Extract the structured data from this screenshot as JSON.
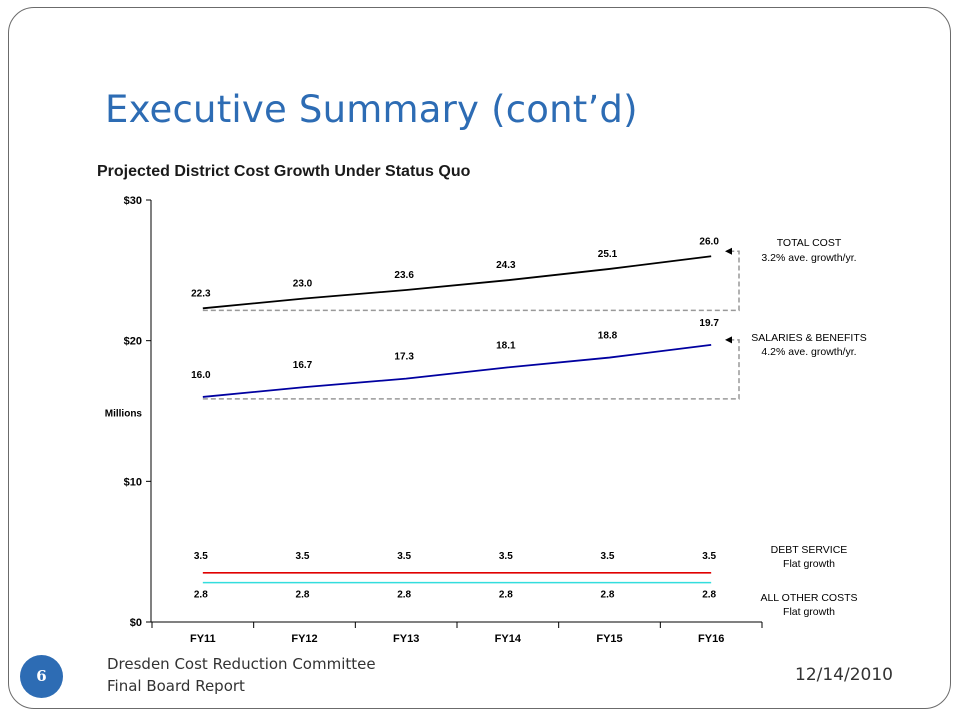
{
  "slide": {
    "title": "Executive Summary (cont’d)",
    "page_number": "6",
    "org_line1": "Dresden Cost Reduction Committee",
    "org_line2": "Final Board Report",
    "date": "12/14/2010"
  },
  "colors": {
    "title": "#2d6cb4",
    "total_cost": "#000000",
    "salaries": "#0000a0",
    "debt_service": "#e00000",
    "other_costs": "#33dddd",
    "guide": "#999999"
  },
  "chart_data": {
    "type": "line",
    "title": "Projected District Cost Growth Under Status Quo",
    "ylabel": "Millions",
    "ylim": [
      0,
      30
    ],
    "yticks": [
      0,
      10,
      20,
      30
    ],
    "ytick_labels": [
      "$0",
      "$10",
      "$20",
      "$30"
    ],
    "categories": [
      "FY11",
      "FY12",
      "FY13",
      "FY14",
      "FY15",
      "FY16"
    ],
    "grid": false,
    "series": [
      {
        "name": "TOTAL COST",
        "note": "3.2% ave. growth/yr.",
        "values": [
          22.3,
          23.0,
          23.6,
          24.3,
          25.1,
          26.0
        ],
        "labels": [
          "22.3",
          "23.0",
          "23.6",
          "24.3",
          "25.1",
          "26.0"
        ]
      },
      {
        "name": "SALARIES & BENEFITS",
        "note": "4.2% ave. growth/yr.",
        "values": [
          16.0,
          16.7,
          17.3,
          18.1,
          18.8,
          19.7
        ],
        "labels": [
          "16.0",
          "16.7",
          "17.3",
          "18.1",
          "18.8",
          "19.7"
        ]
      },
      {
        "name": "DEBT SERVICE",
        "note": "Flat growth",
        "values": [
          3.5,
          3.5,
          3.5,
          3.5,
          3.5,
          3.5
        ],
        "labels": [
          "3.5",
          "3.5",
          "3.5",
          "3.5",
          "3.5",
          "3.5"
        ]
      },
      {
        "name": "ALL OTHER COSTS",
        "note": "Flat growth",
        "values": [
          2.8,
          2.8,
          2.8,
          2.8,
          2.8,
          2.8
        ],
        "labels": [
          "2.8",
          "2.8",
          "2.8",
          "2.8",
          "2.8",
          "2.8"
        ]
      }
    ]
  }
}
